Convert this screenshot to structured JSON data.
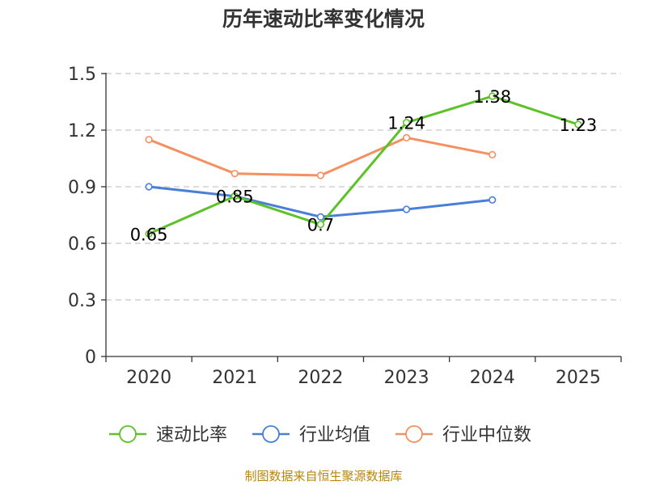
{
  "chart_data": {
    "type": "line",
    "title": "历年速动比率变化情况",
    "categories": [
      "2020",
      "2021",
      "2022",
      "2023",
      "2024",
      "2025"
    ],
    "ylim": [
      0,
      1.5
    ],
    "yticks": [
      "0",
      "0.3",
      "0.6",
      "0.9",
      "1.2",
      "1.5"
    ],
    "ytick_values": [
      0,
      0.3,
      0.6,
      0.9,
      1.2,
      1.5
    ],
    "grid": true,
    "legend_position": "bottom",
    "series": [
      {
        "name": "速动比率",
        "color": "#5cc227",
        "values": [
          0.65,
          0.85,
          0.7,
          1.24,
          1.38,
          1.23
        ],
        "labels": [
          "0.65",
          "0.85",
          "0.7",
          "1.24",
          "1.38",
          "1.23"
        ],
        "show_labels": true
      },
      {
        "name": "行业均值",
        "color": "#4a7fd8",
        "values": [
          0.9,
          0.85,
          0.74,
          0.78,
          0.83,
          null
        ],
        "show_labels": false
      },
      {
        "name": "行业中位数",
        "color": "#f59060",
        "values": [
          1.15,
          0.97,
          0.96,
          1.16,
          1.07,
          null
        ],
        "show_labels": false
      }
    ]
  },
  "source": "制图数据来自恒生聚源数据库"
}
